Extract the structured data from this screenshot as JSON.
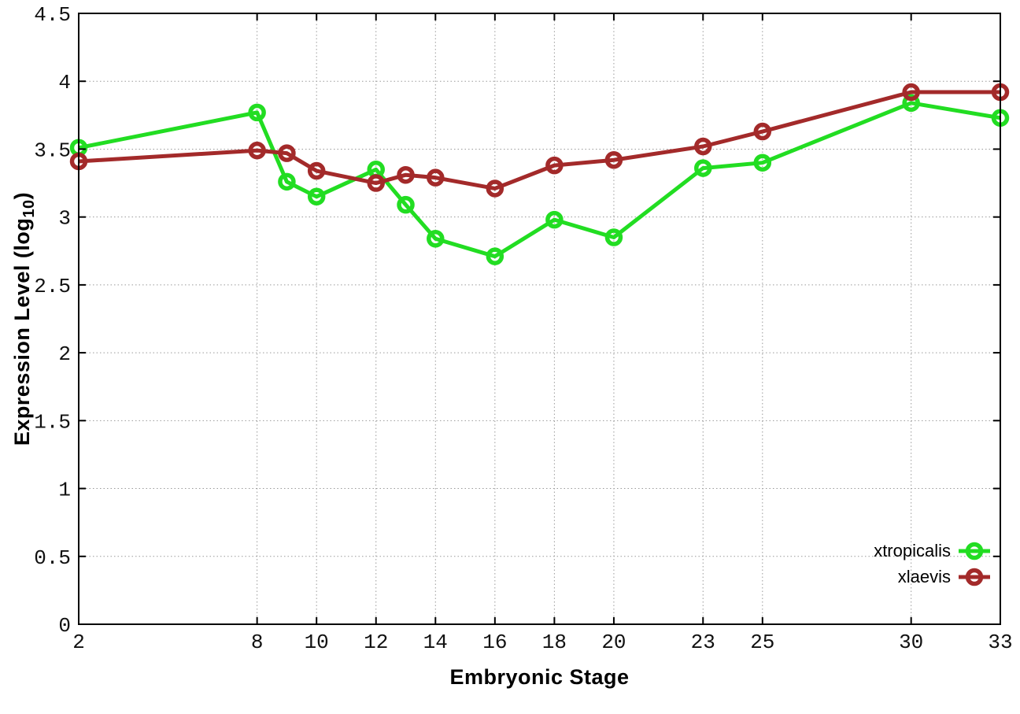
{
  "chart_data": {
    "type": "line",
    "title": "",
    "xlabel": "Embryonic Stage",
    "ylabel": "Expression Level (log10)",
    "ylabel_parts": {
      "prefix": "Expression Level (log",
      "sub": "10",
      "suffix": ")"
    },
    "x": [
      2,
      8,
      9,
      10,
      12,
      13,
      14,
      16,
      18,
      20,
      23,
      25,
      30,
      33
    ],
    "xlim": [
      2,
      33
    ],
    "ylim": [
      0,
      4.5
    ],
    "x_tick_values": [
      2,
      8,
      10,
      12,
      14,
      16,
      18,
      20,
      23,
      25,
      30,
      33
    ],
    "x_tick_labels": [
      "2",
      "8",
      "10",
      "12",
      "14",
      "16",
      "18",
      "20",
      "23",
      "25",
      "30",
      "33"
    ],
    "y_tick_values": [
      0,
      0.5,
      1,
      1.5,
      2,
      2.5,
      3,
      3.5,
      4,
      4.5
    ],
    "y_tick_labels": [
      "0",
      "0.5",
      "1",
      "1.5",
      "2",
      "2.5",
      "3",
      "3.5",
      "4",
      "4.5"
    ],
    "grid": true,
    "legend_position": "inside-bottom-right",
    "marker": "open-circle",
    "background": "#ffffff",
    "grid_color": "#9a9a9a",
    "axis_color": "#000000",
    "series": [
      {
        "name": "xtropicalis",
        "color": "#22dd22",
        "values": [
          3.51,
          3.77,
          3.26,
          3.15,
          3.35,
          3.09,
          2.84,
          2.71,
          2.98,
          2.85,
          3.36,
          3.4,
          3.84,
          3.73
        ]
      },
      {
        "name": "xlaevis",
        "color": "#a32a2a",
        "values": [
          3.41,
          3.49,
          3.47,
          3.34,
          3.25,
          3.31,
          3.29,
          3.21,
          3.38,
          3.42,
          3.52,
          3.63,
          3.92,
          3.92
        ]
      }
    ]
  }
}
